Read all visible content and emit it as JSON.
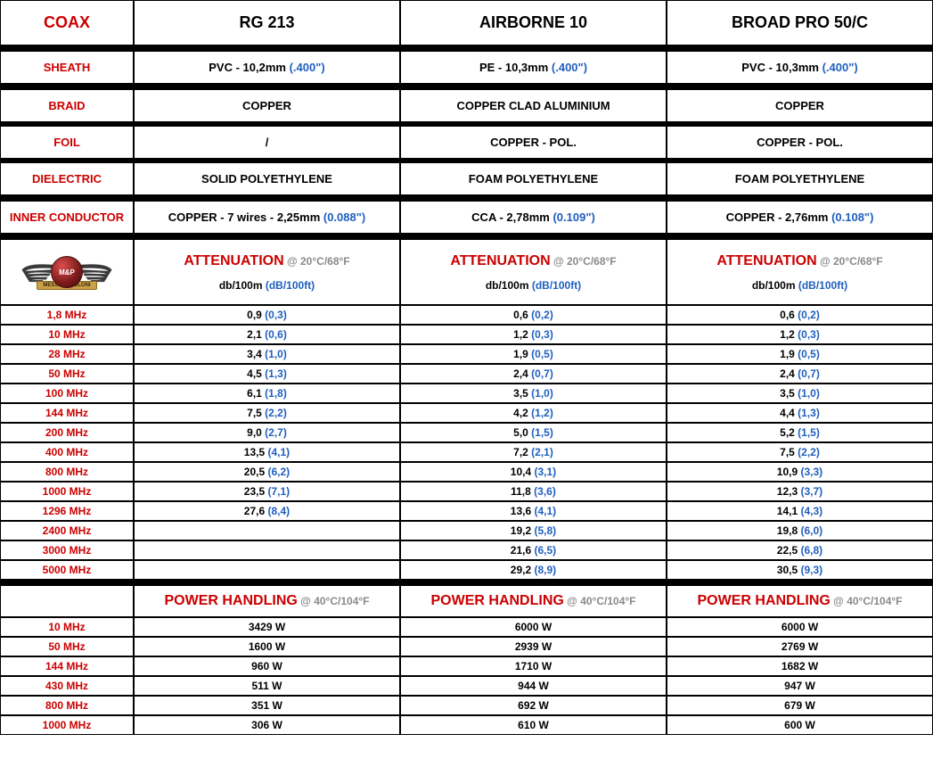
{
  "columns": {
    "label": "COAX",
    "products": [
      "RG 213",
      "AIRBORNE 10",
      "BROAD PRO 50/C"
    ]
  },
  "specs": [
    {
      "label": "SHEATH",
      "vals": [
        {
          "t": "PVC - 10,2mm ",
          "b": "(.400\")"
        },
        {
          "t": "PE - 10,3mm ",
          "b": "(.400\")"
        },
        {
          "t": "PVC - 10,3mm ",
          "b": "(.400\")"
        }
      ]
    },
    {
      "label": "BRAID",
      "vals": [
        {
          "t": "COPPER",
          "b": ""
        },
        {
          "t": "COPPER CLAD ALUMINIUM",
          "b": ""
        },
        {
          "t": "COPPER",
          "b": ""
        }
      ]
    },
    {
      "label": "FOIL",
      "vals": [
        {
          "t": "/",
          "b": ""
        },
        {
          "t": "COPPER - POL.",
          "b": ""
        },
        {
          "t": "COPPER - POL.",
          "b": ""
        }
      ]
    },
    {
      "label": "DIELECTRIC",
      "vals": [
        {
          "t": "SOLID POLYETHYLENE",
          "b": ""
        },
        {
          "t": "FOAM POLYETHYLENE",
          "b": ""
        },
        {
          "t": "FOAM POLYETHYLENE",
          "b": ""
        }
      ]
    },
    {
      "label": "INNER CONDUCTOR",
      "vals": [
        {
          "t": "COPPER - 7 wires - 2,25mm ",
          "b": "(0.088\")"
        },
        {
          "t": "CCA - 2,78mm ",
          "b": "(0.109\")"
        },
        {
          "t": "COPPER - 2,76mm ",
          "b": "(0.108\")"
        }
      ]
    }
  ],
  "attenuation": {
    "title": "ATTENUATION",
    "cond": " @ 20°C/68°F",
    "sub": "db/100m ",
    "sub_blue": "(dB/100ft)",
    "rows": [
      {
        "f": "1,8 MHz",
        "v": [
          {
            "m": "0,9",
            "b": "(0,3)"
          },
          {
            "m": "0,6",
            "b": "(0,2)"
          },
          {
            "m": "0,6",
            "b": "(0,2)"
          }
        ]
      },
      {
        "f": "10 MHz",
        "v": [
          {
            "m": "2,1",
            "b": "(0,6)"
          },
          {
            "m": "1,2",
            "b": "(0,3)"
          },
          {
            "m": "1,2",
            "b": "(0,3)"
          }
        ]
      },
      {
        "f": "28 MHz",
        "v": [
          {
            "m": "3,4",
            "b": "(1,0)"
          },
          {
            "m": "1,9",
            "b": "(0,5)"
          },
          {
            "m": "1,9",
            "b": "(0,5)"
          }
        ]
      },
      {
        "f": "50 MHz",
        "v": [
          {
            "m": "4,5",
            "b": "(1,3)"
          },
          {
            "m": "2,4",
            "b": "(0,7)"
          },
          {
            "m": "2,4",
            "b": "(0,7)"
          }
        ]
      },
      {
        "f": "100 MHz",
        "v": [
          {
            "m": "6,1",
            "b": "(1,8)"
          },
          {
            "m": "3,5",
            "b": "(1,0)"
          },
          {
            "m": "3,5",
            "b": "(1,0)"
          }
        ]
      },
      {
        "f": "144 MHz",
        "v": [
          {
            "m": "7,5",
            "b": "(2,2)"
          },
          {
            "m": "4,2",
            "b": "(1,2)"
          },
          {
            "m": "4,4",
            "b": "(1,3)"
          }
        ]
      },
      {
        "f": "200 MHz",
        "v": [
          {
            "m": "9,0",
            "b": "(2,7)"
          },
          {
            "m": "5,0",
            "b": "(1,5)"
          },
          {
            "m": "5,2",
            "b": "(1,5)"
          }
        ]
      },
      {
        "f": "400 MHz",
        "v": [
          {
            "m": "13,5",
            "b": "(4,1)"
          },
          {
            "m": "7,2",
            "b": "(2,1)"
          },
          {
            "m": "7,5",
            "b": "(2,2)"
          }
        ]
      },
      {
        "f": "800 MHz",
        "v": [
          {
            "m": "20,5",
            "b": "(6,2)"
          },
          {
            "m": "10,4",
            "b": "(3,1)"
          },
          {
            "m": "10,9",
            "b": "(3,3)"
          }
        ]
      },
      {
        "f": "1000 MHz",
        "v": [
          {
            "m": "23,5",
            "b": "(7,1)"
          },
          {
            "m": "11,8",
            "b": "(3,6)"
          },
          {
            "m": "12,3",
            "b": "(3,7)"
          }
        ]
      },
      {
        "f": "1296 MHz",
        "v": [
          {
            "m": "27,6",
            "b": "(8,4)"
          },
          {
            "m": "13,6",
            "b": "(4,1)"
          },
          {
            "m": "14,1",
            "b": "(4,3)"
          }
        ]
      },
      {
        "f": "2400 MHz",
        "v": [
          {
            "m": "",
            "b": ""
          },
          {
            "m": "19,2",
            "b": "(5,8)"
          },
          {
            "m": "19,8",
            "b": "(6,0)"
          }
        ]
      },
      {
        "f": "3000 MHz",
        "v": [
          {
            "m": "",
            "b": ""
          },
          {
            "m": "21,6",
            "b": "(6,5)"
          },
          {
            "m": "22,5",
            "b": "(6,8)"
          }
        ]
      },
      {
        "f": "5000 MHz",
        "v": [
          {
            "m": "",
            "b": ""
          },
          {
            "m": "29,2",
            "b": "(8,9)"
          },
          {
            "m": "30,5",
            "b": "(9,3)"
          }
        ]
      }
    ]
  },
  "power": {
    "title": "POWER HANDLING",
    "cond": " @ 40°C/104°F",
    "rows": [
      {
        "f": "10 MHz",
        "v": [
          "3429 W",
          "6000 W",
          "6000 W"
        ]
      },
      {
        "f": "50 MHz",
        "v": [
          "1600 W",
          "2939 W",
          "2769 W"
        ]
      },
      {
        "f": "144 MHz",
        "v": [
          "960 W",
          "1710 W",
          "1682 W"
        ]
      },
      {
        "f": "430 MHz",
        "v": [
          "511 W",
          "944 W",
          "947 W"
        ]
      },
      {
        "f": "800 MHz",
        "v": [
          "351 W",
          "692 W",
          "679 W"
        ]
      },
      {
        "f": "1000 MHz",
        "v": [
          "306 W",
          "610 W",
          "600 W"
        ]
      }
    ]
  },
  "logo": {
    "center": "M&P",
    "banner": "MESSI & PAOLONI"
  },
  "colors": {
    "red": "#cc0000",
    "blue": "#1f5fbf",
    "black": "#000000",
    "gray": "#8a8a8a",
    "white": "#ffffff"
  }
}
